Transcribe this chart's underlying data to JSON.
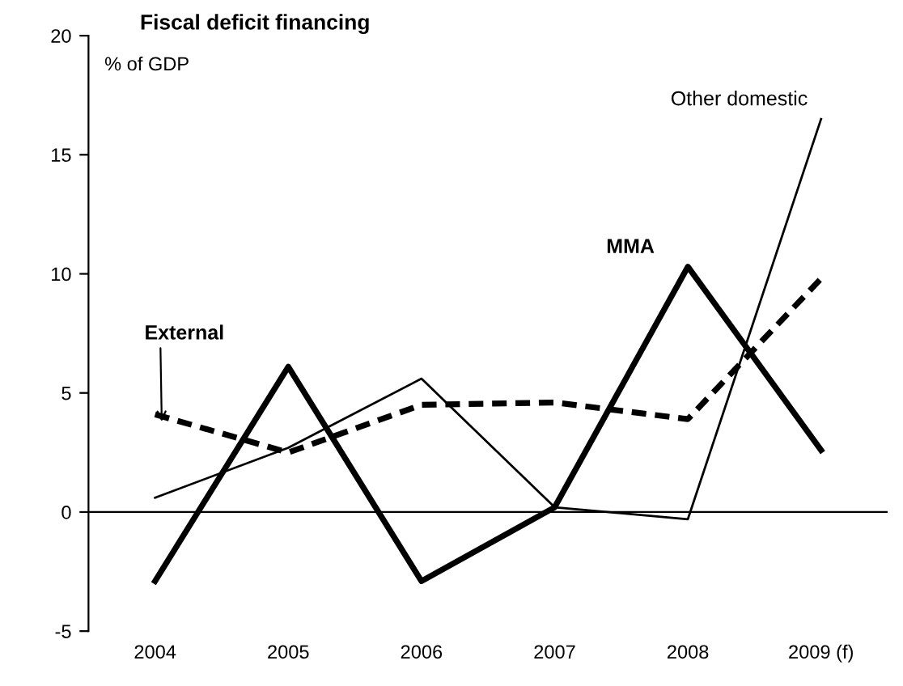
{
  "chart_data": {
    "type": "line",
    "title": "Fiscal deficit financing",
    "subtitle": "% of GDP",
    "categories": [
      "2004",
      "2005",
      "2006",
      "2007",
      "2008",
      "2009 (f)"
    ],
    "series": [
      {
        "name": "Other domestic",
        "color": "#000000",
        "values": [
          0.6,
          2.7,
          5.6,
          0.2,
          -0.3,
          16.5
        ],
        "line_style": "solid"
      },
      {
        "name": "MMA",
        "color": "#000000",
        "values": [
          -2.9,
          6.1,
          -2.9,
          0.2,
          10.3,
          2.6
        ],
        "line_style": "solid"
      },
      {
        "name": "External",
        "color": "#000000",
        "values": [
          4.1,
          2.5,
          4.5,
          4.6,
          3.9,
          9.8
        ],
        "line_style": "dashed"
      }
    ],
    "ylim": [
      -5,
      20
    ],
    "yticks": [
      -5,
      0,
      5,
      10,
      15,
      20
    ],
    "ref_lines": [
      {
        "axis": "y",
        "value": 0,
        "color": "#000000"
      }
    ],
    "grid": false,
    "legend": false,
    "marker": "none"
  }
}
